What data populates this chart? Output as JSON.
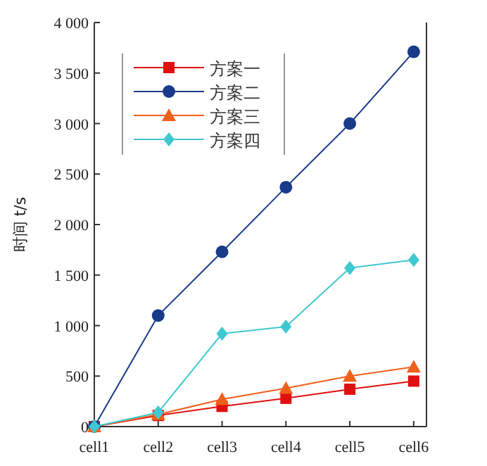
{
  "chart_data": {
    "type": "line",
    "ylabel": "时间 t/s",
    "categories": [
      "cell1",
      "cell2",
      "cell3",
      "cell4",
      "cell5",
      "cell6"
    ],
    "series": [
      {
        "name": "方案一",
        "color": "#e01010",
        "marker": "square",
        "values": [
          0,
          110,
          200,
          280,
          370,
          450
        ]
      },
      {
        "name": "方案二",
        "color": "#1a3a8a",
        "marker": "circle",
        "values": [
          0,
          1100,
          1730,
          2370,
          3000,
          3710
        ]
      },
      {
        "name": "方案三",
        "color": "#f0601a",
        "marker": "triangle",
        "values": [
          0,
          120,
          270,
          380,
          500,
          590
        ]
      },
      {
        "name": "方案四",
        "color": "#40c8d0",
        "marker": "diamond",
        "values": [
          0,
          140,
          920,
          990,
          1570,
          1650
        ]
      }
    ],
    "ylim": [
      0,
      4000
    ],
    "yticks": [
      0,
      {
        "value": 500,
        "label": "500"
      },
      {
        "value": 1000,
        "label": "1 000"
      },
      {
        "value": 1500,
        "label": "1 500"
      },
      {
        "value": 2000,
        "label": "2 000"
      },
      {
        "value": 2500,
        "label": "2 500"
      },
      {
        "value": 3000,
        "label": "3 000"
      },
      {
        "value": 3500,
        "label": "3 500"
      },
      {
        "value": 4000,
        "label": "4 000"
      }
    ],
    "grid": false,
    "legend": "top left"
  }
}
